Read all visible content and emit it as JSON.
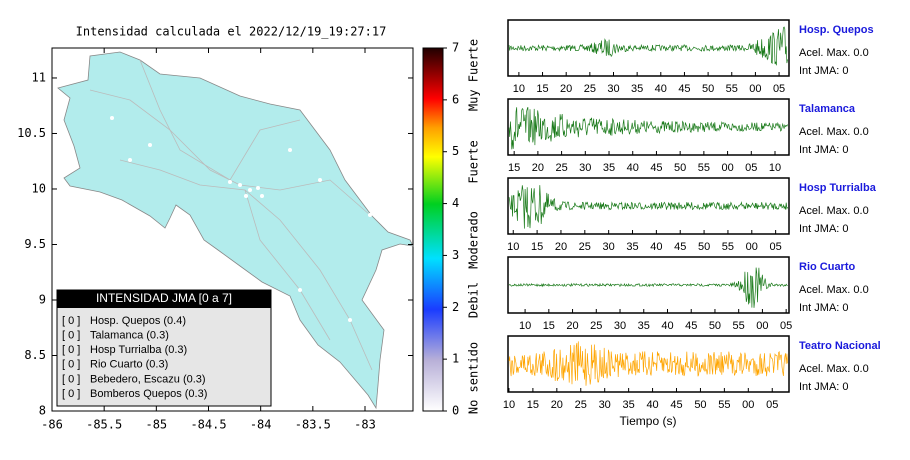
{
  "map": {
    "title": "Intensidad calculada el 2022/12/19_19:27:17",
    "xlim": [
      -86,
      -82.54
    ],
    "ylim": [
      8,
      11.27
    ],
    "xticks": [
      -86,
      -85.5,
      -85,
      -84.5,
      -84,
      -83.5,
      -83
    ],
    "yticks": [
      8,
      8.5,
      9,
      9.5,
      10,
      10.5,
      11
    ],
    "colorbar": {
      "lim": [
        0,
        7
      ],
      "ticks": [
        0,
        1,
        2,
        3,
        4,
        5,
        6,
        7
      ],
      "labels": [
        "No sentido",
        "Debil",
        "Moderado",
        "Fuerte",
        "Muy Fuerte"
      ]
    },
    "legend": {
      "title": "INTENSIDAD JMA [0 a 7]",
      "items": [
        {
          "level": "[ 0 ]",
          "station": "Hosp. Quepos (0.4)"
        },
        {
          "level": "[ 0 ]",
          "station": "Talamanca (0.3)"
        },
        {
          "level": "[ 0 ]",
          "station": "Hosp Turrialba (0.3)"
        },
        {
          "level": "[ 0 ]",
          "station": "Rio Cuarto (0.3)"
        },
        {
          "level": "[ 0 ]",
          "station": "Bebedero, Escazu (0.3)"
        },
        {
          "level": "[ 0 ]",
          "station": "Bomberos Quepos (0.3)"
        }
      ]
    }
  },
  "waveforms": {
    "xlabel": "Tiempo (s)",
    "panels": [
      {
        "station": "Hosp. Quepos",
        "accel": "Acel. Max. 0.0",
        "intensity": "Int JMA: 0",
        "xlim": [
          7.7,
          67.1
        ],
        "xticks": [
          10,
          15,
          20,
          25,
          30,
          35,
          40,
          45,
          50,
          55,
          {
            "value": 60,
            "label": "00"
          },
          {
            "value": 65,
            "label": "05"
          }
        ]
      },
      {
        "station": "Talamanca",
        "accel": "Acel. Max. 0.0",
        "intensity": "Int JMA: 0",
        "xlim": [
          13.7,
          72.95
        ],
        "xticks": [
          15,
          20,
          25,
          30,
          35,
          40,
          45,
          50,
          55,
          {
            "value": 60,
            "label": "00"
          },
          {
            "value": 65,
            "label": "05"
          },
          {
            "value": 70,
            "label": "10"
          }
        ]
      },
      {
        "station": "Hosp Turrialba",
        "accel": "Acel. Max. 0.0",
        "intensity": "Int JMA: 0",
        "xlim": [
          8.9,
          67.8
        ],
        "xticks": [
          10,
          15,
          20,
          25,
          30,
          35,
          40,
          45,
          50,
          55,
          {
            "value": 60,
            "label": "00"
          },
          {
            "value": 65,
            "label": "05"
          }
        ]
      },
      {
        "station": "Rio Cuarto",
        "accel": "Acel. Max. 0.0",
        "intensity": "Int JMA: 0",
        "xlim": [
          6.4,
          65.6
        ],
        "xticks": [
          10,
          15,
          20,
          25,
          30,
          35,
          40,
          45,
          50,
          55,
          {
            "value": 60,
            "label": "00"
          },
          {
            "value": 65,
            "label": "05"
          }
        ]
      },
      {
        "station": "Teatro Nacional",
        "accel": "Acel. Max. 0.0",
        "intensity": "Int JMA: 0",
        "xlim": [
          9.8,
          68.5
        ],
        "xticks": [
          10,
          15,
          20,
          25,
          30,
          35,
          40,
          45,
          50,
          55,
          {
            "value": 60,
            "label": "00"
          },
          {
            "value": 65,
            "label": "05"
          }
        ]
      }
    ]
  }
}
